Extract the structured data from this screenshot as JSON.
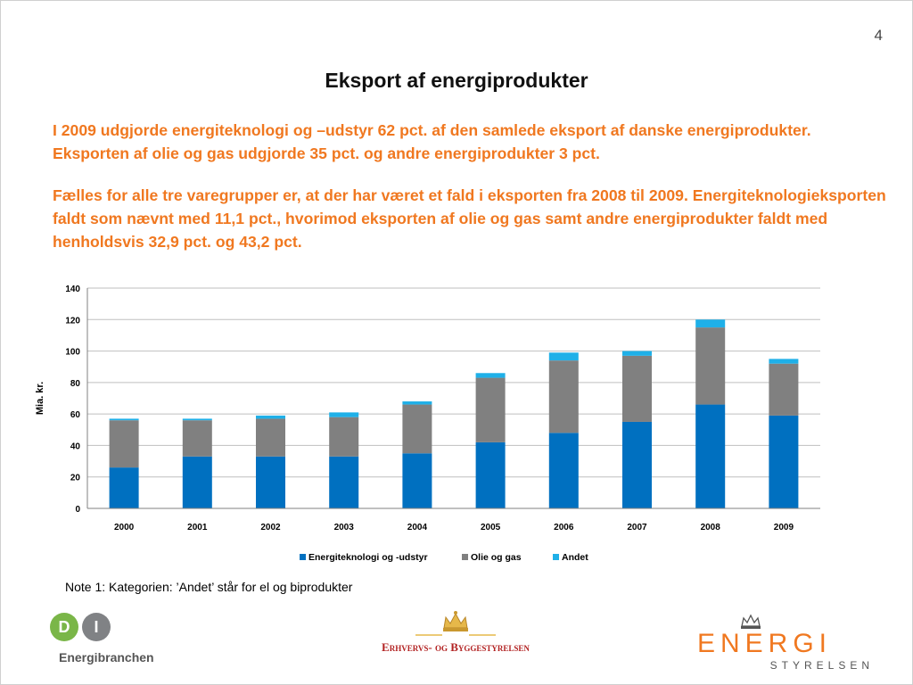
{
  "slide": {
    "page_number": "4",
    "title": "Eksport af energiprodukter",
    "paragraph1": "I 2009 udgjorde energiteknologi og –udstyr 62 pct. af den samlede eksport af danske energiprodukter. Eksporten af olie og gas udgjorde 35 pct. og andre energiprodukter 3 pct.",
    "paragraph2": "Fælles for alle tre varegrupper er, at der har været et fald i eksporten fra 2008 til 2009. Energiteknologieksporten faldt som nævnt med 11,1 pct., hvorimod eksporten af olie og gas samt andre energiprodukter faldt med henholdsvis 32,9 pct. og 43,2 pct.",
    "note": "Note 1: Kategorien: ’Andet’ står for el og biprodukter"
  },
  "chart_data": {
    "type": "bar",
    "stacked": true,
    "categories": [
      "2000",
      "2001",
      "2002",
      "2003",
      "2004",
      "2005",
      "2006",
      "2007",
      "2008",
      "2009"
    ],
    "series": [
      {
        "name": "Energiteknologi og -udstyr",
        "color": "#0070c0",
        "values": [
          26,
          33,
          33,
          33,
          35,
          42,
          48,
          55,
          66,
          59
        ]
      },
      {
        "name": "Olie og gas",
        "color": "#808080",
        "values": [
          30,
          23,
          24,
          25,
          31,
          41,
          46,
          42,
          49,
          33
        ]
      },
      {
        "name": "Andet",
        "color": "#1fb0e8",
        "values": [
          1,
          1,
          2,
          3,
          2,
          3,
          5,
          3,
          5,
          3
        ]
      }
    ],
    "ylabel": "Mia. kr.",
    "xlabel": "",
    "ylim": [
      0,
      140
    ],
    "yticks": [
      0,
      20,
      40,
      60,
      80,
      100,
      120,
      140
    ],
    "grid": true,
    "legend_position": "bottom"
  },
  "logos": {
    "di_letters": "DI",
    "di_sub": "Energibranchen",
    "ebs": "Erhvervs- og Byggestyrelsen",
    "energi_main": "ENERGI",
    "energi_sub": "STYRELSEN"
  }
}
